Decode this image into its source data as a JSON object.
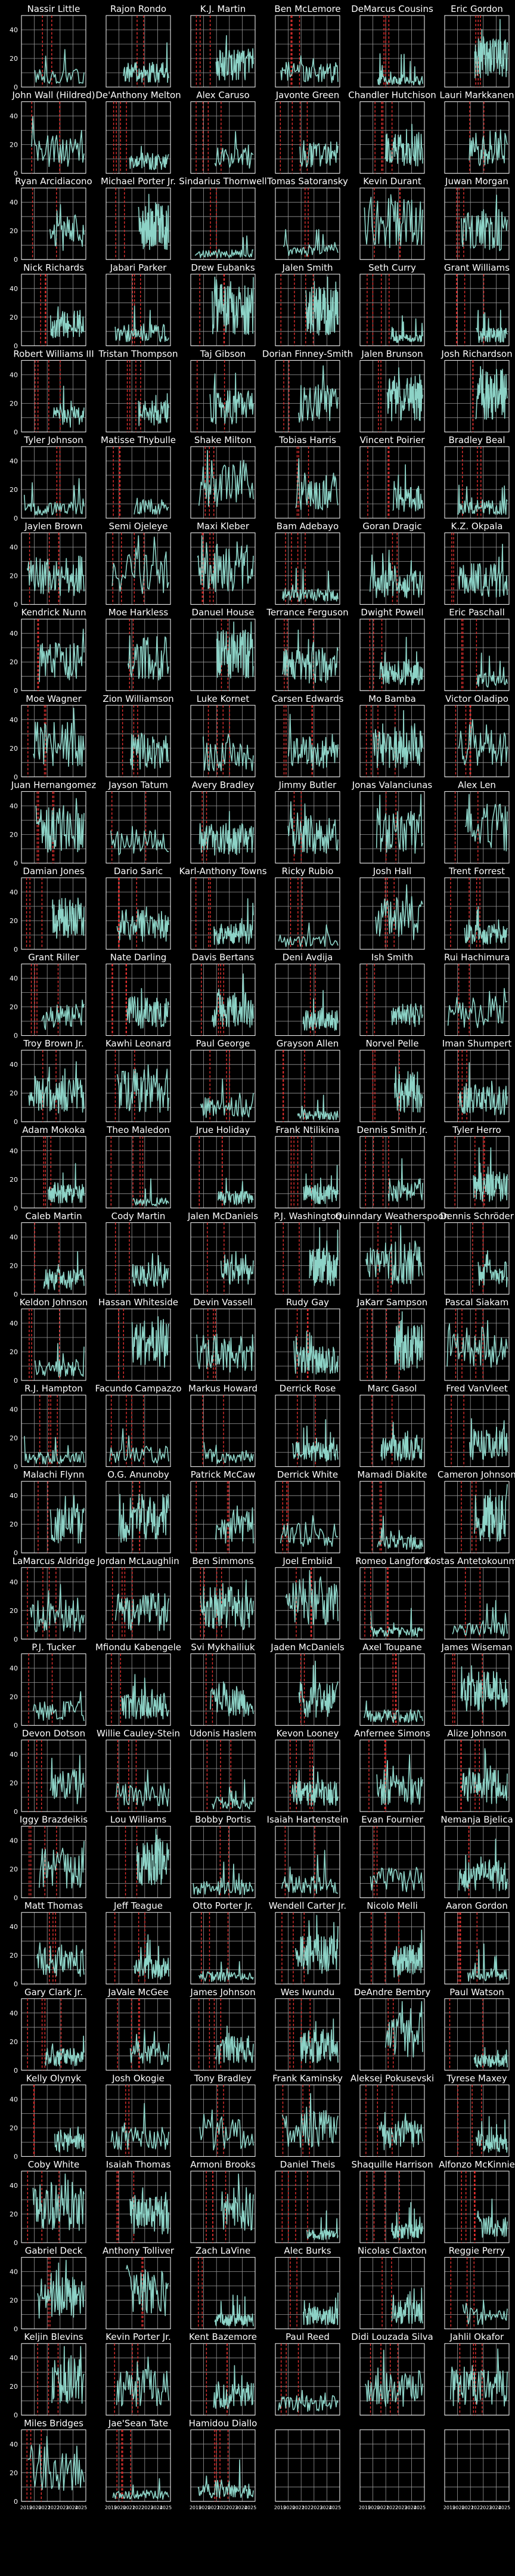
{
  "chart_data": {
    "type": "line",
    "layout": "small-multiples",
    "ylim": [
      0,
      50
    ],
    "yticks": [
      "0",
      "20",
      "40"
    ],
    "xticks": [
      "2019",
      "2020",
      "2021",
      "2022",
      "2023",
      "2024",
      "2025"
    ],
    "series_color": "#8dd3c7",
    "vline_color": "#e3302f",
    "grid": true,
    "players": [
      "Nassir Little",
      "Rajon Rondo",
      "K.J. Martin",
      "Ben McLemore",
      "DeMarcus Cousins",
      "Eric Gordon",
      "John Wall (Hildred)",
      "De'Anthony Melton",
      "Alex Caruso",
      "Javonte Green",
      "Chandler Hutchison",
      "Lauri Markkanen",
      "Ryan Arcidiacono",
      "Michael Porter Jr.",
      "Sindarius Thornwell",
      "Tomas Satoransky",
      "Kevin Durant",
      "Juwan Morgan",
      "Nick Richards",
      "Jabari Parker",
      "Drew Eubanks",
      "Jalen Smith",
      "Seth Curry",
      "Grant Williams",
      "Robert Williams III",
      "Tristan Thompson",
      "Taj Gibson",
      "Dorian Finney-Smith",
      "Jalen Brunson",
      "Josh Richardson",
      "Tyler Johnson",
      "Matisse Thybulle",
      "Shake Milton",
      "Tobias Harris",
      "Vincent Poirier",
      "Bradley Beal",
      "Jaylen Brown",
      "Semi Ojeleye",
      "Maxi Kleber",
      "Bam Adebayo",
      "Goran Dragic",
      "K.Z. Okpala",
      "Kendrick Nunn",
      "Moe Harkless",
      "Danuel House",
      "Terrance Ferguson",
      "Dwight Powell",
      "Eric Paschall",
      "Moe Wagner",
      "Zion Williamson",
      "Luke Kornet",
      "Carsen Edwards",
      "Mo Bamba",
      "Victor Oladipo",
      "Juan Hernangomez",
      "Jayson Tatum",
      "Avery Bradley",
      "Jimmy Butler",
      "Jonas Valanciunas",
      "Alex Len",
      "Damian Jones",
      "Dario Saric",
      "Karl-Anthony Towns",
      "Ricky Rubio",
      "Josh Hall",
      "Trent Forrest",
      "Grant Riller",
      "Nate Darling",
      "Davis Bertans",
      "Deni Avdija",
      "Ish Smith",
      "Rui Hachimura",
      "Troy Brown Jr.",
      "Kawhi Leonard",
      "Paul George",
      "Grayson Allen",
      "Norvel Pelle",
      "Iman Shumpert",
      "Adam Mokoka",
      "Theo Maledon",
      "Jrue Holiday",
      "Frank Ntilikina",
      "Dennis Smith Jr.",
      "Tyler Herro",
      "Caleb Martin",
      "Cody Martin",
      "Jalen McDaniels",
      "P.J. Washington",
      "Quinndary Weatherspoon",
      "Dennis Schröder",
      "Keldon Johnson",
      "Hassan Whiteside",
      "Devin Vassell",
      "Rudy Gay",
      "JaKarr Sampson",
      "Pascal Siakam",
      "R.J. Hampton",
      "Facundo Campazzo",
      "Markus Howard",
      "Derrick Rose",
      "Marc Gasol",
      "Fred VanVleet",
      "Malachi Flynn",
      "O.G. Anunoby",
      "Patrick McCaw",
      "Derrick White",
      "Mamadi Diakite",
      "Cameron Johnson",
      "LaMarcus Aldridge",
      "Jordan McLaughlin",
      "Ben Simmons",
      "Joel Embiid",
      "Romeo Langford",
      "Kostas Antetokounmpo",
      "P.J. Tucker",
      "Mfiondu Kabengele",
      "Svi Mykhailiuk",
      "Jaden McDaniels",
      "Axel Toupane",
      "James Wiseman",
      "Devon Dotson",
      "Willie Cauley-Stein",
      "Udonis Haslem",
      "Kevon Looney",
      "Anfernee Simons",
      "Alize Johnson",
      "Iggy Brazdeikis",
      "Lou Williams",
      "Bobby Portis",
      "Isaiah Hartenstein",
      "Evan Fournier",
      "Nemanja Bjelica",
      "Matt Thomas",
      "Jeff Teague",
      "Otto Porter Jr.",
      "Wendell Carter Jr.",
      "Nicolo Melli",
      "Aaron Gordon",
      "Gary Clark Jr.",
      "JaVale McGee",
      "James Johnson",
      "Wes Iwundu",
      "DeAndre Bembry",
      "Paul Watson",
      "Kelly Olynyk",
      "Josh Okogie",
      "Tony Bradley",
      "Frank Kaminsky",
      "Aleksej Pokusevski",
      "Tyrese Maxey",
      "Coby White",
      "Isaiah Thomas",
      "Armoni Brooks",
      "Daniel Theis",
      "Shaquille Harrison",
      "Alfonzo McKinnie",
      "Gabriel Deck",
      "Anthony Tolliver",
      "Zach LaVine",
      "Alec Burks",
      "Nicolas Claxton",
      "Reggie Perry",
      "Keljin Blevins",
      "Kevin Porter Jr.",
      "Kent Bazemore",
      "Paul Reed",
      "Didi Louzada Silva",
      "Jahlil Okafor",
      "Miles Bridges",
      "Jae'Sean Tate",
      "Hamidou Diallo",
      "",
      "",
      ""
    ]
  }
}
